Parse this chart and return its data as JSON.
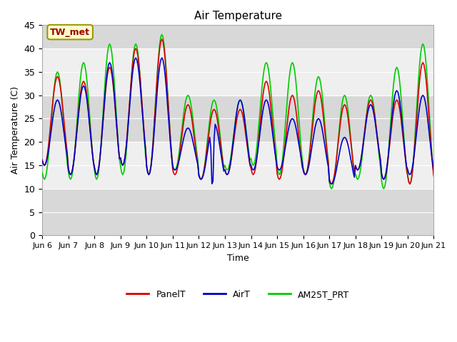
{
  "title": "Air Temperature",
  "ylabel": "Air Temperature (C)",
  "xlabel": "Time",
  "ylim": [
    0,
    45
  ],
  "yticks": [
    0,
    5,
    10,
    15,
    20,
    25,
    30,
    35,
    40,
    45
  ],
  "annotation_text": "TW_met",
  "annotation_color": "#990000",
  "annotation_bg": "#ffffcc",
  "annotation_border": "#999900",
  "legend_labels": [
    "PanelT",
    "AirT",
    "AM25T_PRT"
  ],
  "line_colors": [
    "#dd0000",
    "#0000cc",
    "#00cc00"
  ],
  "bg_band_dark": "#d8d8d8",
  "bg_band_light": "#efefef",
  "plot_bg": "#ffffff",
  "xtick_labels": [
    "Jun 6",
    "Jun 7",
    "Jun 8",
    "Jun 9",
    "Jun 10",
    "Jun 11",
    "Jun 12",
    "Jun 13",
    "Jun 14",
    "Jun 15",
    "Jun 16",
    "Jun 17",
    "Jun 18",
    "Jun 19",
    "Jun 20",
    "Jun 21"
  ],
  "xstart": 0,
  "xend": 15,
  "num_points": 361,
  "figsize": [
    6.4,
    4.8
  ],
  "dpi": 100
}
